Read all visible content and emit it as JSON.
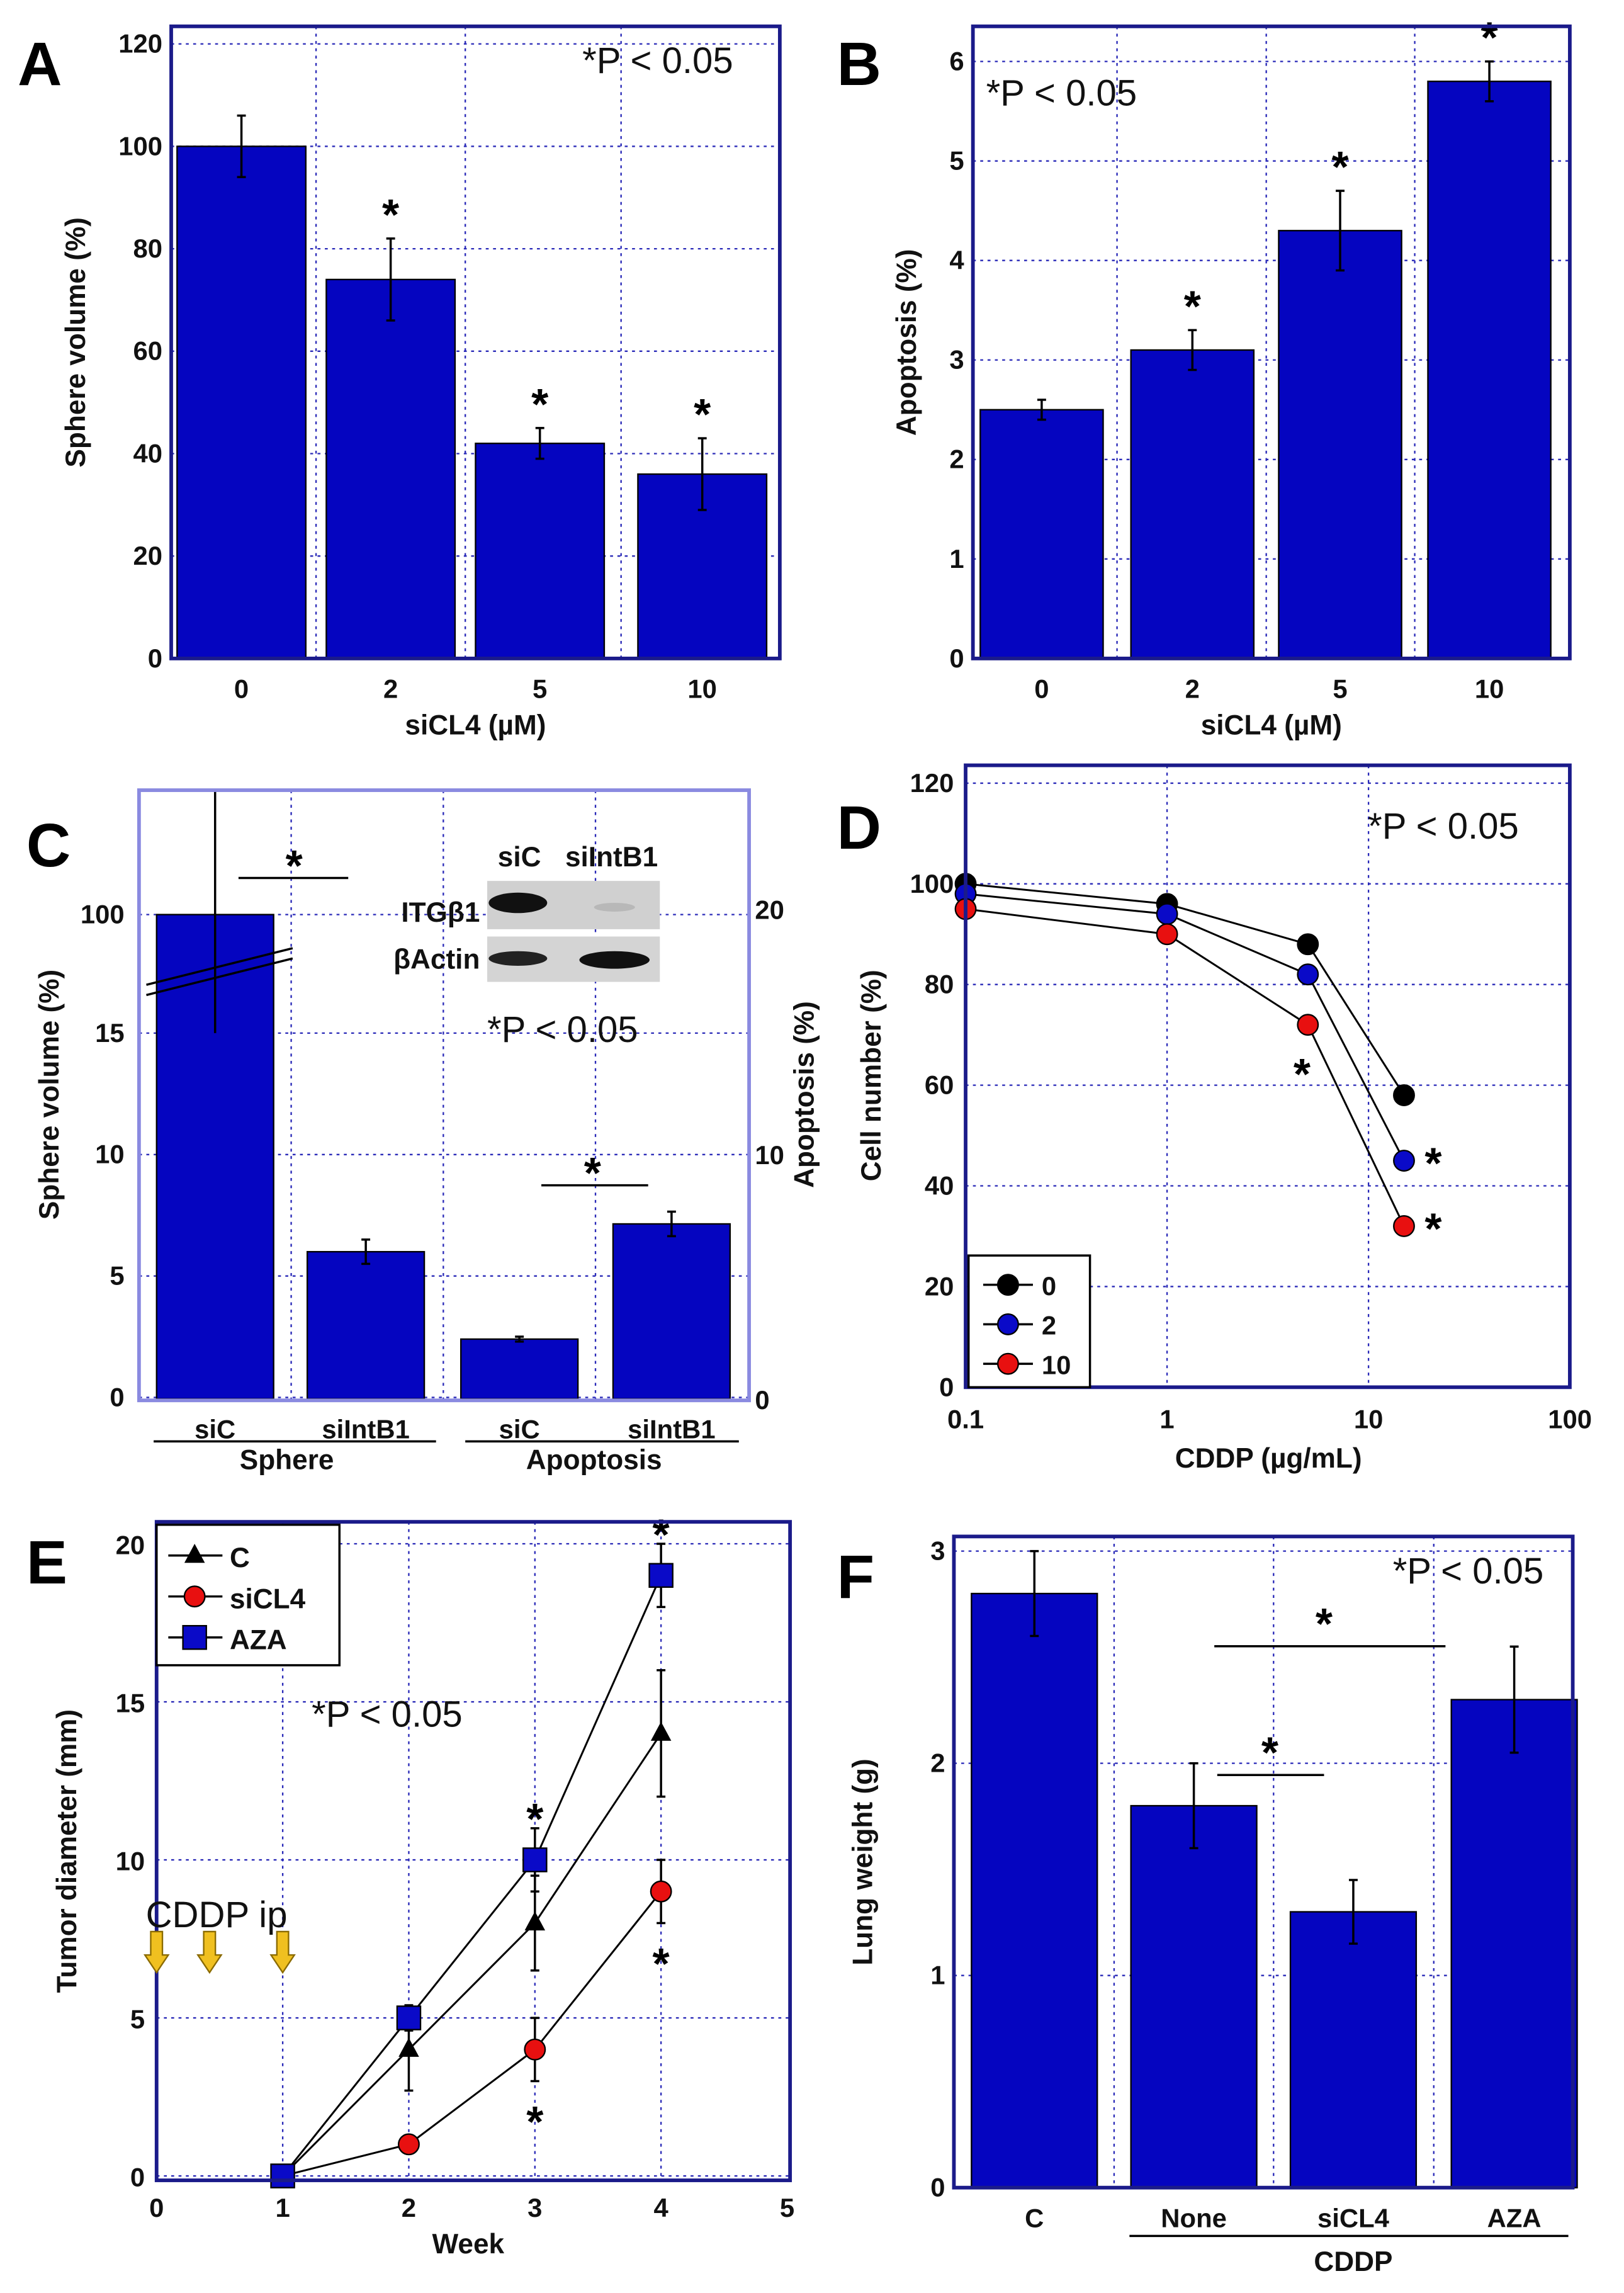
{
  "chart_data": [
    {
      "panel": "A",
      "type": "bar",
      "categories": [
        "0",
        "2",
        "5",
        "10"
      ],
      "values": [
        100,
        74,
        42,
        36
      ],
      "errors": [
        6,
        8,
        3,
        7
      ],
      "xlabel": "siCL4 (µM)",
      "ylabel": "Sphere volume (%)",
      "ylim": [
        0,
        120
      ],
      "yticks": [
        "0",
        "20",
        "40",
        "60",
        "80",
        "100",
        "120"
      ],
      "annotation": "*P < 0.05",
      "stars": [
        1,
        2,
        3
      ],
      "star": "*",
      "bar_color": "#0505c0"
    },
    {
      "panel": "B",
      "type": "bar",
      "categories": [
        "0",
        "2",
        "5",
        "10"
      ],
      "values": [
        2.5,
        3.1,
        4.3,
        5.8
      ],
      "errors": [
        0.1,
        0.2,
        0.4,
        0.2
      ],
      "xlabel": "siCL4 (µM)",
      "ylabel": "Apoptosis (%)",
      "ylim": [
        0,
        6
      ],
      "yticks": [
        "0",
        "1",
        "2",
        "3",
        "4",
        "5",
        "6"
      ],
      "annotation": "*P < 0.05",
      "stars": [
        1,
        2,
        3
      ],
      "star": "*",
      "bar_color": "#0505c0"
    },
    {
      "panel": "C",
      "type": "bar",
      "categories": [
        "siC",
        "siIntB1",
        "siC",
        "siIntB1"
      ],
      "groups": [
        "Sphere",
        "Apoptosis"
      ],
      "values": [
        100,
        6,
        2.5,
        7.2
      ],
      "errors": [
        null,
        0.5,
        0.1,
        0.5
      ],
      "axis": [
        "left",
        "left",
        "right",
        "right"
      ],
      "ylabel": "Sphere volume (%)",
      "ylabel_right": "Apoptosis (%)",
      "yticks": [
        "0",
        "5",
        "10",
        "15",
        "100"
      ],
      "yticks_right": [
        "0",
        "10",
        "20"
      ],
      "ylim": [
        0,
        15
      ],
      "ylim_right": [
        0,
        20
      ],
      "axis_break": true,
      "annotation": "*P < 0.05",
      "star": "*",
      "blot": {
        "lanes": [
          "siC",
          "siIntB1"
        ],
        "rows": [
          "ITGβ1",
          "βActin"
        ]
      },
      "bar_color": "#0505c0"
    },
    {
      "panel": "D",
      "type": "line",
      "xscale": "log",
      "x": [
        0.1,
        1,
        5,
        15
      ],
      "xlim": [
        0.1,
        100
      ],
      "xticks": [
        "0.1",
        "1",
        "10",
        "100"
      ],
      "ylim": [
        0,
        120
      ],
      "yticks": [
        "0",
        "20",
        "40",
        "60",
        "80",
        "100",
        "120"
      ],
      "xlabel": "CDDP (µg/mL)",
      "ylabel": "Cell number (%)",
      "series": [
        {
          "name": "0",
          "color": "#000000",
          "values": [
            100,
            96,
            88,
            58
          ]
        },
        {
          "name": "2",
          "color": "#0a0ac8",
          "values": [
            98,
            94,
            82,
            45
          ]
        },
        {
          "name": "10",
          "color": "#e81010",
          "values": [
            95,
            90,
            72,
            32
          ]
        }
      ],
      "legend": "bottom-left",
      "annotation": "*P < 0.05",
      "star": "*",
      "stars": [
        {
          "series": 2,
          "point": 2,
          "pos": "below"
        },
        {
          "series": 1,
          "point": 3,
          "pos": "right"
        },
        {
          "series": 2,
          "point": 3,
          "pos": "right"
        }
      ]
    },
    {
      "panel": "E",
      "type": "line",
      "x": [
        1,
        2,
        3,
        4
      ],
      "xlim": [
        0,
        5
      ],
      "xticks": [
        "0",
        "1",
        "2",
        "3",
        "4",
        "5"
      ],
      "ylim": [
        0,
        20
      ],
      "yticks": [
        "0",
        "5",
        "10",
        "15",
        "20"
      ],
      "xlabel": "Week",
      "ylabel": "Tumor diameter (mm)",
      "series": [
        {
          "name": "C",
          "marker": "triangle",
          "color": "#000000",
          "values": [
            0,
            4,
            8,
            14
          ],
          "errors": [
            0,
            1.3,
            1.5,
            2
          ]
        },
        {
          "name": "siCL4",
          "marker": "circle",
          "color": "#e81010",
          "values": [
            0,
            1,
            4,
            9
          ],
          "errors": [
            0,
            0,
            1,
            1
          ]
        },
        {
          "name": "AZA",
          "marker": "square",
          "color": "#0a0ac8",
          "values": [
            0,
            5,
            10,
            19
          ],
          "errors": [
            0,
            0.4,
            1,
            1
          ]
        }
      ],
      "legend": "top-left",
      "annotation": "*P < 0.05",
      "star": "*",
      "arrow_label": "CDDP ip",
      "arrows_at_week": [
        0,
        0.42,
        1
      ],
      "stars": [
        {
          "series": 2,
          "point": 2,
          "pos": "above"
        },
        {
          "series": 2,
          "point": 3,
          "pos": "above"
        },
        {
          "series": 1,
          "point": 2,
          "pos": "below"
        },
        {
          "series": 1,
          "point": 3,
          "pos": "below"
        }
      ]
    },
    {
      "panel": "F",
      "type": "bar",
      "categories": [
        "C",
        "None",
        "siCL4",
        "AZA"
      ],
      "group": "CDDP",
      "values": [
        2.8,
        1.8,
        1.3,
        2.3
      ],
      "errors": [
        0.2,
        0.2,
        0.15,
        0.25
      ],
      "ylabel": "Lung weight (g)",
      "ylim": [
        0,
        3
      ],
      "yticks": [
        "0",
        "1",
        "2",
        "3"
      ],
      "annotation": "*P < 0.05",
      "star": "*",
      "bar_color": "#0505c0"
    }
  ]
}
